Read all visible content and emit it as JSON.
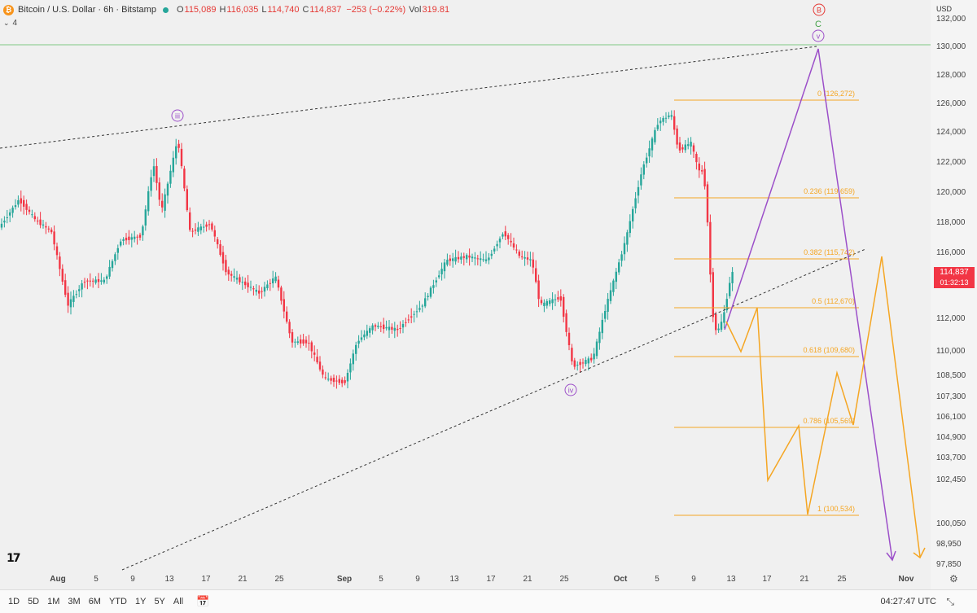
{
  "header": {
    "title": "Bitcoin / U.S. Dollar · 6h · Bitstamp",
    "open_label": "O",
    "open": "115,089",
    "high_label": "H",
    "high": "116,035",
    "low_label": "L",
    "low": "114,740",
    "close_label": "C",
    "close": "114,837",
    "change": "−253 (−0.22%)",
    "vol_label": "Vol",
    "volume": "319.81",
    "indicator_count": "4",
    "logo_glyph": "₿"
  },
  "axis": {
    "currency": "USD",
    "price_labels": [
      "132,000",
      "130,000",
      "128,000",
      "126,000",
      "124,000",
      "122,000",
      "120,000",
      "118,000",
      "116,000",
      "112,000",
      "110,000",
      "108,500",
      "107,300",
      "106,100",
      "104,900",
      "103,700",
      "102,450",
      "100,050",
      "98,950",
      "97,850"
    ],
    "date_labels": [
      "Aug",
      "5",
      "9",
      "13",
      "17",
      "21",
      "25",
      "Sep",
      "5",
      "9",
      "13",
      "17",
      "21",
      "25",
      "Oct",
      "5",
      "9",
      "13",
      "17",
      "21",
      "25",
      "Nov"
    ]
  },
  "price_tag": {
    "value": "114,837",
    "countdown": "01:32:13"
  },
  "fib_labels": [
    "0 (126,272)",
    "0.236 (119,659)",
    "0.382 (115,742)",
    "0.5 (112,670)",
    "0.618 (109,680)",
    "0.786 (105,569)",
    "1 (100,534)"
  ],
  "wave_labels": {
    "iii": "iii",
    "iv": "iv",
    "v": "v",
    "C": "C",
    "B": "B"
  },
  "colors": {
    "up": "#26a69a",
    "down": "#f23645",
    "fib": "#f5a623",
    "purple": "#9c4fc9",
    "green_line": "#81c784",
    "red_circle": "#e53935"
  },
  "toolbar": {
    "ranges": [
      "1D",
      "5D",
      "1M",
      "3M",
      "6M",
      "YTD",
      "1Y",
      "5Y",
      "All"
    ],
    "time": "04:27:47 UTC"
  },
  "icons": {
    "logo": "tradingview-logo",
    "settings": "gear-icon",
    "calendar": "calendar-icon",
    "resize": "resize-icon"
  }
}
